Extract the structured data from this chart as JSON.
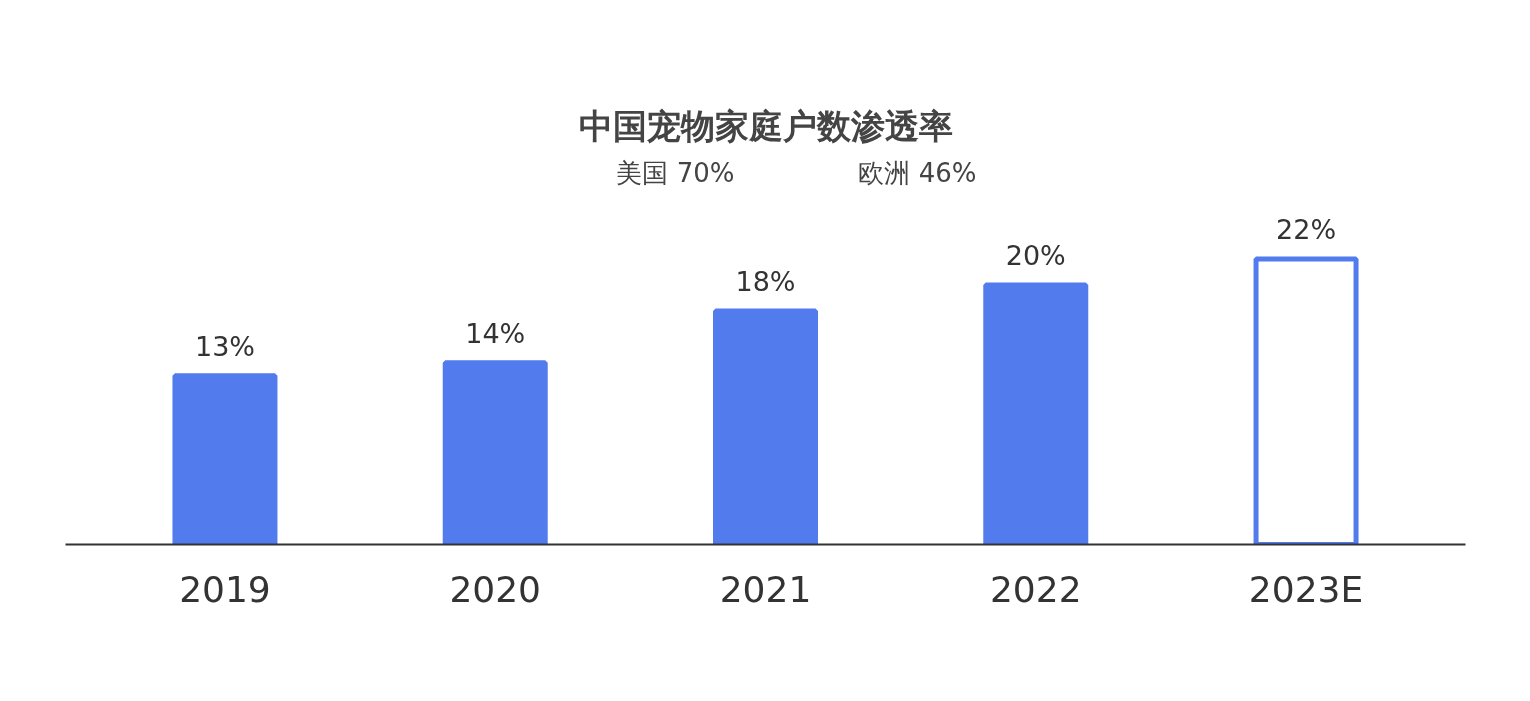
{
  "chart_data": {
    "type": "bar",
    "title": "中国宠物家庭户数渗透率",
    "annotations": [
      "美国 70%",
      "欧洲 46%"
    ],
    "categories": [
      "2019",
      "2020",
      "2021",
      "2022",
      "2023E"
    ],
    "values": [
      13,
      14,
      18,
      20,
      22
    ],
    "color": "#527cee",
    "colors": [
      "#527cee",
      "#527cee",
      "#527cee",
      "#527cee",
      "#ffffff"
    ],
    "value_labels": [
      "13%",
      "14%",
      "18%",
      "20%",
      "22%"
    ],
    "grid": false
  }
}
